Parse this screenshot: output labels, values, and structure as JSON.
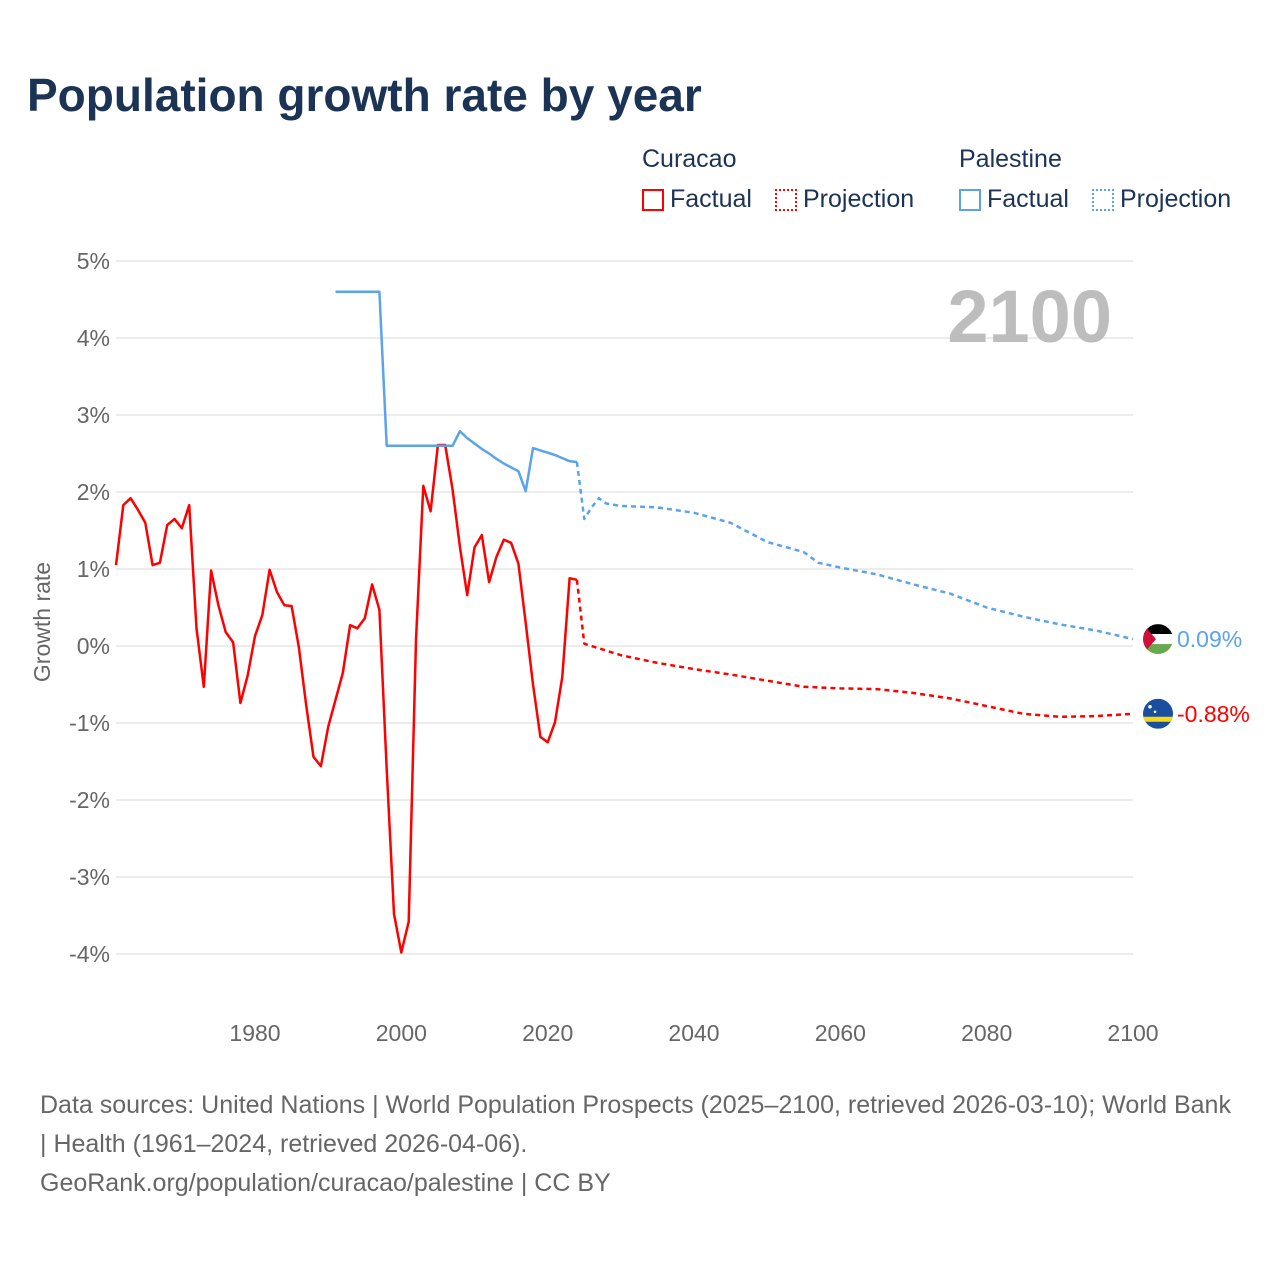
{
  "title": "Population growth rate by year",
  "legend": {
    "groups": [
      {
        "name": "Curacao",
        "color": "#ff0000",
        "items": [
          "Factual",
          "Projection"
        ]
      },
      {
        "name": "Palestine",
        "color": "#5ba3ea",
        "items": [
          "Factual",
          "Projection"
        ]
      }
    ]
  },
  "chart_data": {
    "type": "line",
    "title": "Population growth rate by year",
    "xlabel": "",
    "ylabel": "Growth rate",
    "xlim": [
      1961,
      2100
    ],
    "ylim": [
      -4,
      5
    ],
    "xticks": [
      1980,
      2000,
      2020,
      2040,
      2060,
      2080,
      2100
    ],
    "xtick_labels": [
      "1980",
      "2000",
      "2020",
      "2040",
      "2060",
      "2080",
      "2100"
    ],
    "yticks": [
      5,
      4,
      3,
      2,
      1,
      0,
      -1,
      -2,
      -3,
      -4
    ],
    "ytick_labels": [
      "5%",
      "4%",
      "3%",
      "2%",
      "1%",
      "0%",
      "-1%",
      "-2%",
      "-3%",
      "-4%"
    ],
    "grid": true,
    "year_label": "2100",
    "series": [
      {
        "name": "Curacao Factual",
        "color": "#ff0000",
        "style": "solid",
        "x": [
          1961,
          1962,
          1963,
          1964,
          1965,
          1966,
          1967,
          1968,
          1969,
          1970,
          1971,
          1972,
          1973,
          1974,
          1975,
          1976,
          1977,
          1978,
          1979,
          1980,
          1981,
          1982,
          1983,
          1984,
          1985,
          1986,
          1987,
          1988,
          1989,
          1990,
          1991,
          1992,
          1993,
          1994,
          1995,
          1996,
          1997,
          1998,
          1999,
          2000,
          2001,
          2002,
          2003,
          2004,
          2005,
          2006,
          2007,
          2008,
          2009,
          2010,
          2011,
          2012,
          2013,
          2014,
          2015,
          2016,
          2017,
          2018,
          2019,
          2020,
          2021,
          2022,
          2023,
          2024
        ],
        "y": [
          1.05,
          1.83,
          1.92,
          1.77,
          1.6,
          1.05,
          1.08,
          1.57,
          1.65,
          1.53,
          1.83,
          0.23,
          -0.53,
          0.98,
          0.53,
          0.18,
          0.05,
          -0.74,
          -0.38,
          0.13,
          0.4,
          0.99,
          0.7,
          0.53,
          0.52,
          -0.02,
          -0.77,
          -1.44,
          -1.56,
          -1.05,
          -0.7,
          -0.35,
          0.27,
          0.23,
          0.36,
          0.8,
          0.47,
          -1.6,
          -3.48,
          -3.98,
          -3.58,
          0.08,
          2.08,
          1.75,
          2.61,
          2.61,
          2.03,
          1.29,
          0.66,
          1.28,
          1.44,
          0.83,
          1.16,
          1.38,
          1.34,
          1.07,
          0.3,
          -0.5,
          -1.18,
          -1.25,
          -0.99,
          -0.4,
          0.88,
          0.86
        ]
      },
      {
        "name": "Curacao Projection",
        "color": "#ff0000",
        "style": "dotted",
        "x": [
          2024,
          2025,
          2030,
          2035,
          2040,
          2045,
          2050,
          2055,
          2060,
          2065,
          2070,
          2075,
          2080,
          2085,
          2090,
          2095,
          2100
        ],
        "y": [
          0.86,
          0.03,
          -0.12,
          -0.22,
          -0.3,
          -0.37,
          -0.45,
          -0.53,
          -0.55,
          -0.56,
          -0.61,
          -0.68,
          -0.78,
          -0.88,
          -0.92,
          -0.91,
          -0.88
        ]
      },
      {
        "name": "Palestine Factual",
        "color": "#5ba3ea",
        "style": "solid",
        "x": [
          1991,
          1997,
          1998,
          2007,
          2008,
          2009,
          2010,
          2011,
          2012,
          2013,
          2014,
          2015,
          2016,
          2017,
          2018,
          2019,
          2020,
          2021,
          2022,
          2023,
          2024
        ],
        "y": [
          4.6,
          4.6,
          2.6,
          2.6,
          2.79,
          2.7,
          2.63,
          2.56,
          2.5,
          2.43,
          2.37,
          2.32,
          2.27,
          2.01,
          2.57,
          2.54,
          2.51,
          2.48,
          2.44,
          2.4,
          2.39
        ]
      },
      {
        "name": "Palestine Projection",
        "color": "#5ba3ea",
        "style": "dotted",
        "x": [
          2024,
          2025,
          2026,
          2027,
          2028,
          2030,
          2035,
          2040,
          2045,
          2050,
          2055,
          2057,
          2060,
          2065,
          2070,
          2075,
          2080,
          2085,
          2090,
          2095,
          2100
        ],
        "y": [
          2.39,
          1.65,
          1.8,
          1.92,
          1.85,
          1.82,
          1.8,
          1.73,
          1.6,
          1.35,
          1.22,
          1.08,
          1.02,
          0.93,
          0.8,
          0.68,
          0.5,
          0.38,
          0.28,
          0.2,
          0.09
        ]
      }
    ],
    "end_labels": [
      {
        "country": "Palestine",
        "value": "0.09%",
        "color": "#5ba3ea",
        "y": 0.09
      },
      {
        "country": "Curacao",
        "value": "-0.88%",
        "color": "#ff0000",
        "y": -0.88
      }
    ]
  },
  "footer": {
    "sources": "Data sources: United Nations | World Population Prospects (2025–2100, retrieved 2026-03-10); World Bank | Health (1961–2024, retrieved 2026-04-06).",
    "credit": "GeoRank.org/population/curacao/palestine | CC BY"
  }
}
